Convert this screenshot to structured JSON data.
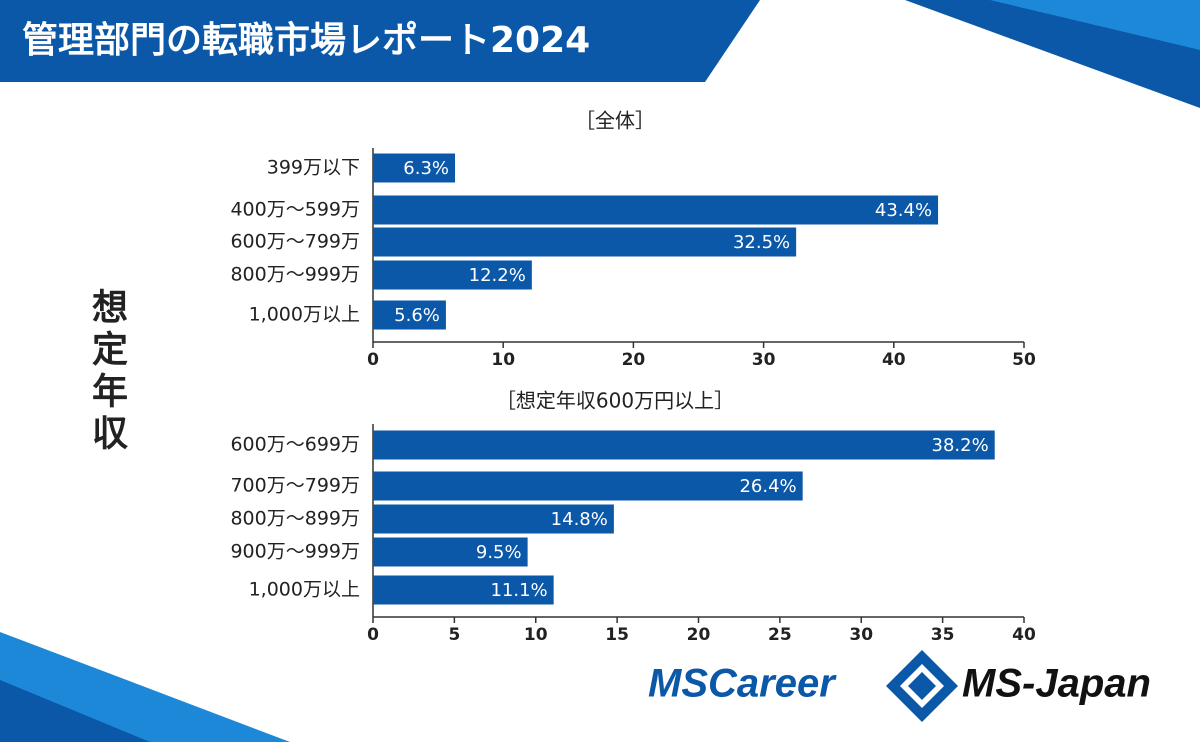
{
  "header": {
    "title": "管理部門の転職市場レポート2024"
  },
  "y_label": "想定年収",
  "logos": [
    "MSCareer",
    "MS-Japan"
  ],
  "chart_data": [
    {
      "type": "bar",
      "orientation": "horizontal",
      "title": "［全体］",
      "categories": [
        "399万以下",
        "400万～599万",
        "600万～799万",
        "800万～999万",
        "1,000万以上"
      ],
      "values": [
        6.3,
        43.4,
        32.5,
        12.2,
        5.6
      ],
      "value_labels": [
        "6.3%",
        "43.4%",
        "32.5%",
        "12.2%",
        "5.6%"
      ],
      "color": "#0b57a8",
      "xlim": [
        0,
        50
      ],
      "xticks": [
        0,
        10,
        20,
        30,
        40,
        50
      ]
    },
    {
      "type": "bar",
      "orientation": "horizontal",
      "title": "［想定年収600万円以上］",
      "categories": [
        "600万～699万",
        "700万～799万",
        "800万～899万",
        "900万～999万",
        "1,000万以上"
      ],
      "values": [
        38.2,
        26.4,
        14.8,
        9.5,
        11.1
      ],
      "value_labels": [
        "38.2%",
        "26.4%",
        "14.8%",
        "9.5%",
        "11.1%"
      ],
      "color": "#0b57a8",
      "xlim": [
        0,
        40
      ],
      "xticks": [
        0,
        5,
        10,
        15,
        20,
        25,
        30,
        35,
        40
      ]
    }
  ]
}
